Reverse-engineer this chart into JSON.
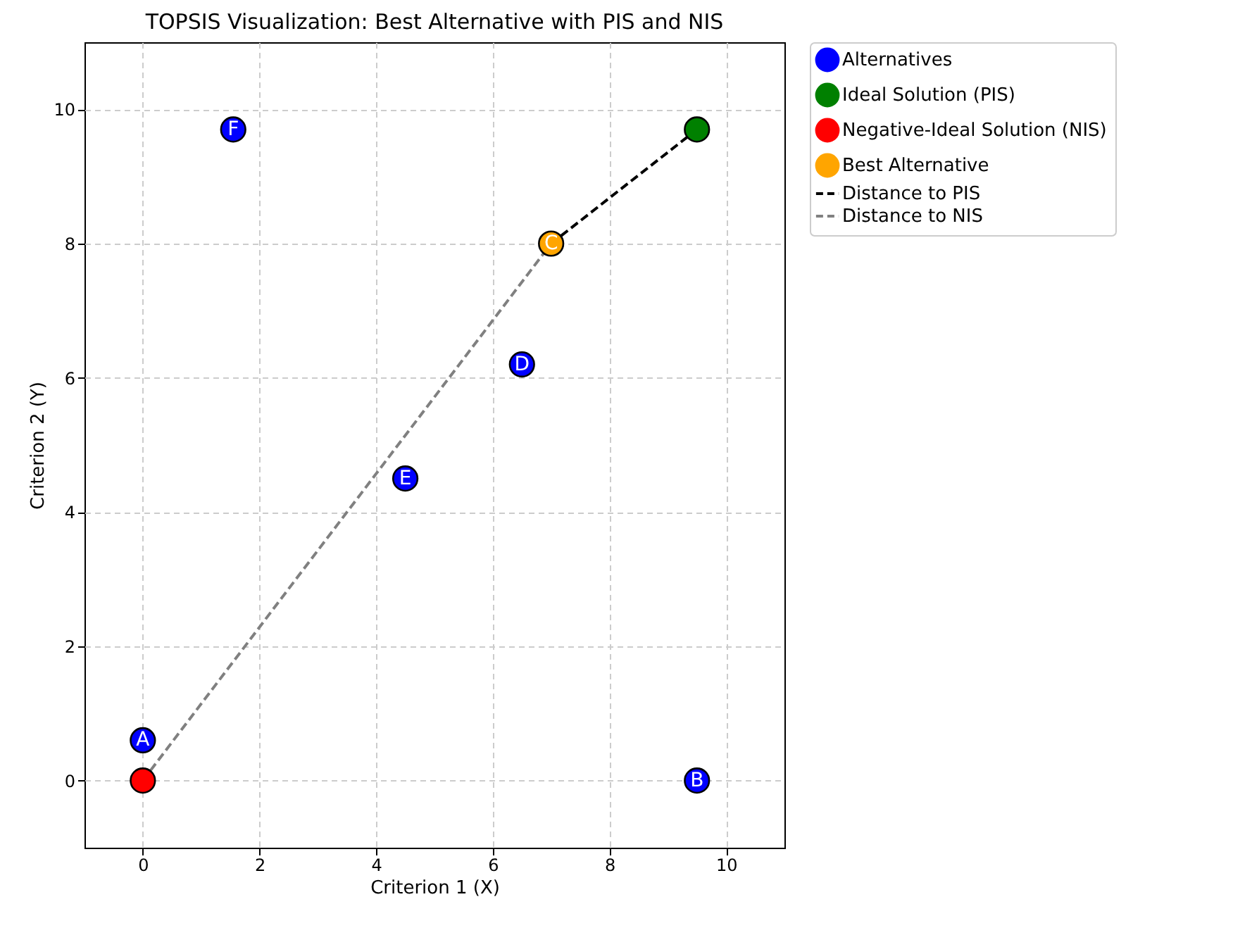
{
  "chart_data": {
    "type": "scatter",
    "title": "TOPSIS Visualization: Best Alternative with PIS and NIS",
    "xlabel": "Criterion 1 (X)",
    "ylabel": "Criterion 2 (Y)",
    "series": [
      {
        "name": "Alternatives",
        "color": "#0000ff",
        "x": [
          0,
          9.5,
          6.5,
          4.5,
          1.55
        ],
        "values": [
          0.6,
          0,
          6.2,
          4.5,
          9.7
        ]
      },
      {
        "name": "Ideal Solution (PIS)",
        "color": "#008000",
        "x": [
          9.5
        ],
        "values": [
          9.7
        ]
      },
      {
        "name": "Negative-Ideal Solution (NIS)",
        "color": "#ff0000",
        "x": [
          0
        ],
        "values": [
          0
        ]
      },
      {
        "name": "Best Alternative",
        "color": "#ffa500",
        "x": [
          7
        ],
        "values": [
          8
        ]
      },
      {
        "name": "Distance to PIS",
        "type": "line",
        "line_style": "dashed",
        "marker": "none",
        "color": "#000000",
        "x": [
          7,
          9.5
        ],
        "values": [
          8,
          9.7
        ]
      },
      {
        "name": "Distance to NIS",
        "type": "line",
        "line_style": "dashed",
        "marker": "none",
        "color": "#808080",
        "x": [
          0,
          7
        ],
        "values": [
          0,
          8
        ]
      }
    ],
    "annotations": [
      {
        "text": "A",
        "x": 0,
        "y": 0.6
      },
      {
        "text": "B",
        "x": 9.5,
        "y": 0
      },
      {
        "text": "C",
        "x": 7,
        "y": 8
      },
      {
        "text": "D",
        "x": 6.5,
        "y": 6.2
      },
      {
        "text": "E",
        "x": 4.5,
        "y": 4.5
      },
      {
        "text": "F",
        "x": 1.55,
        "y": 9.7
      }
    ],
    "xlim": [
      -1,
      11
    ],
    "xticks": [
      0,
      2,
      4,
      6,
      8,
      10
    ],
    "ylim": [
      -1,
      11
    ],
    "yticks": [
      0,
      2,
      4,
      6,
      8,
      10
    ],
    "grid": true,
    "legend": "top right",
    "marker": "circle"
  }
}
